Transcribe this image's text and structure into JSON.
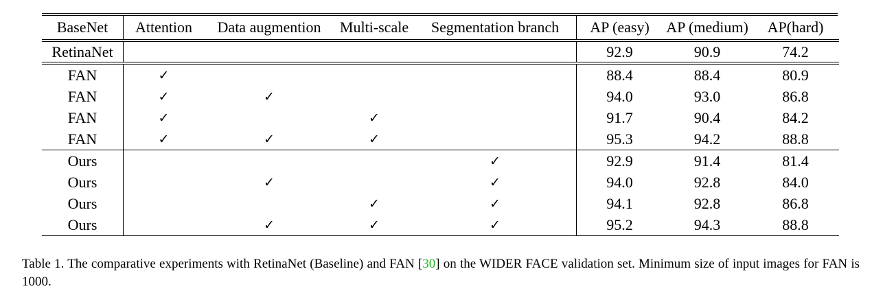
{
  "table": {
    "headers": [
      "BaseNet",
      "Attention",
      "Data augmention",
      "Multi-scale",
      "Segmentation branch",
      "AP (easy)",
      "AP (medium)",
      "AP(hard)"
    ],
    "check_symbol": "✓",
    "groups": [
      [
        {
          "basenet": "RetinaNet",
          "attention": false,
          "data_aug": false,
          "multi_scale": false,
          "seg_branch": false,
          "ap_easy": "92.9",
          "ap_medium": "90.9",
          "ap_hard": "74.2"
        }
      ],
      [
        {
          "basenet": "FAN",
          "attention": true,
          "data_aug": false,
          "multi_scale": false,
          "seg_branch": false,
          "ap_easy": "88.4",
          "ap_medium": "88.4",
          "ap_hard": "80.9"
        },
        {
          "basenet": "FAN",
          "attention": true,
          "data_aug": true,
          "multi_scale": false,
          "seg_branch": false,
          "ap_easy": "94.0",
          "ap_medium": "93.0",
          "ap_hard": "86.8"
        },
        {
          "basenet": "FAN",
          "attention": true,
          "data_aug": false,
          "multi_scale": true,
          "seg_branch": false,
          "ap_easy": "91.7",
          "ap_medium": "90.4",
          "ap_hard": "84.2"
        },
        {
          "basenet": "FAN",
          "attention": true,
          "data_aug": true,
          "multi_scale": true,
          "seg_branch": false,
          "ap_easy": "95.3",
          "ap_medium": "94.2",
          "ap_hard": "88.8"
        }
      ],
      [
        {
          "basenet": "Ours",
          "attention": false,
          "data_aug": false,
          "multi_scale": false,
          "seg_branch": true,
          "ap_easy": "92.9",
          "ap_medium": "91.4",
          "ap_hard": "81.4"
        },
        {
          "basenet": "Ours",
          "attention": false,
          "data_aug": true,
          "multi_scale": false,
          "seg_branch": true,
          "ap_easy": "94.0",
          "ap_medium": "92.8",
          "ap_hard": "84.0"
        },
        {
          "basenet": "Ours",
          "attention": false,
          "data_aug": false,
          "multi_scale": true,
          "seg_branch": true,
          "ap_easy": "94.1",
          "ap_medium": "92.8",
          "ap_hard": "86.8"
        },
        {
          "basenet": "Ours",
          "attention": false,
          "data_aug": true,
          "multi_scale": true,
          "seg_branch": true,
          "ap_easy": "95.2",
          "ap_medium": "94.3",
          "ap_hard": "88.8"
        }
      ]
    ]
  },
  "caption": {
    "before_cite": "Table 1. The comparative experiments with RetinaNet (Baseline) and FAN  [",
    "cite": "30",
    "after_cite": "] on the WIDER FACE validation set.  Minimum size of input images for FAN is 1000.",
    "cite_color": "#22bb22"
  }
}
